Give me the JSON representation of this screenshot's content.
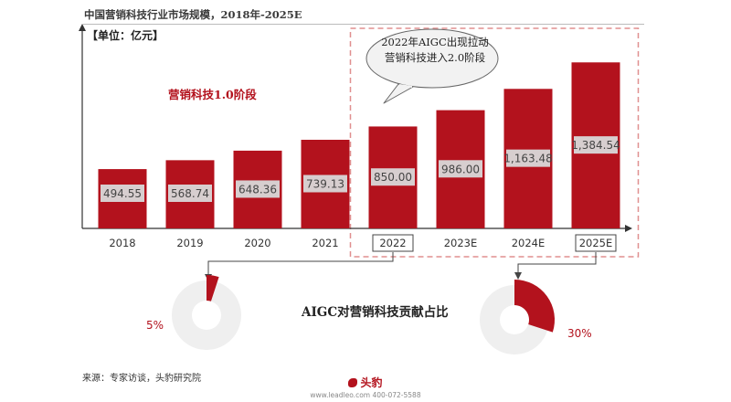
{
  "header": {
    "title": "中国营销科技行业市场规模，2018年-2025E",
    "unit": "【单位：亿元】"
  },
  "annotations": {
    "stage_label": "营销科技1.0阶段",
    "bubble_text": "2022年AIGC出现拉动营销科技进入2.0阶段",
    "center_heading": "AIGC对营销科技贡献占比"
  },
  "donuts": [
    {
      "year": "2022",
      "label": "5%",
      "fraction": 0.05
    },
    {
      "year": "2025E",
      "label": "30%",
      "fraction": 0.3
    }
  ],
  "footer": {
    "source": "来源：专家访谈，头豹研究院",
    "brand": "头豹",
    "contact": "www.leadleo.com  400-072-5588"
  },
  "colors": {
    "bar": "#b3121d",
    "highlight_frame": "#e08f8f",
    "donut_track": "#efefef"
  },
  "chart_data": {
    "type": "bar",
    "title": "中国营销科技行业市场规模，2018年-2025E",
    "ylabel": "单位：亿元",
    "categories": [
      "2018",
      "2019",
      "2020",
      "2021",
      "2022",
      "2023E",
      "2024E",
      "2025E"
    ],
    "values": [
      494.55,
      568.74,
      648.36,
      739.13,
      850.0,
      986.0,
      1163.48,
      1384.54
    ],
    "value_labels": [
      "494.55",
      "568.74",
      "648.36",
      "739.13",
      "850.00",
      "986.00",
      "1,163.48",
      "1,384.54"
    ],
    "ylim": [
      0,
      1600
    ],
    "grid": false,
    "boxed_categories": [
      "2022",
      "2025E"
    ],
    "highlighted_range": [
      "2022",
      "2025E"
    ]
  }
}
